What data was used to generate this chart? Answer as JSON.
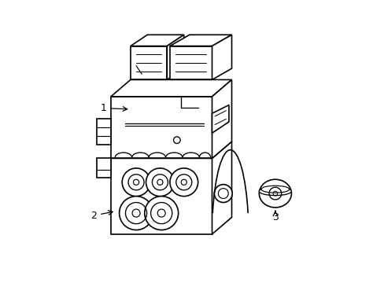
{
  "background_color": "#ffffff",
  "line_color": "#000000",
  "line_width": 1.2,
  "label_1": "1",
  "label_2": "2",
  "label_3": "3"
}
